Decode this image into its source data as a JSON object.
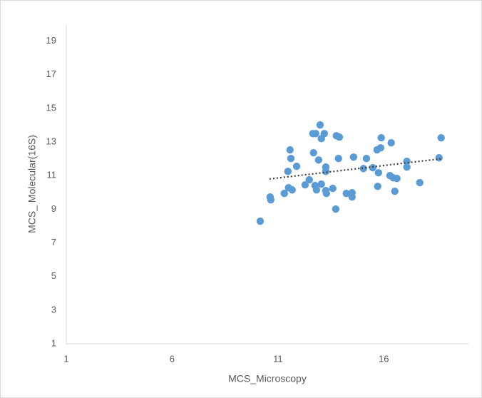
{
  "chart_data": {
    "type": "scatter",
    "x_label": "MCS_Microscopy",
    "y_label": "MCS_ Molecular(16S)",
    "color": "#5b9bd5",
    "grid": false,
    "xlim": [
      1,
      20
    ],
    "xticks": [
      1,
      6,
      11,
      16
    ],
    "ylim": [
      1,
      20
    ],
    "yticks": [
      1,
      3,
      5,
      7,
      9,
      11,
      13,
      15,
      17,
      19
    ],
    "x": [
      10.63,
      10.66,
      10.16,
      11.3,
      11.47,
      11.5,
      11.57,
      11.61,
      11.67,
      11.88,
      12.28,
      12.48,
      12.65,
      12.68,
      12.78,
      12.75,
      12.82,
      12.92,
      12.99,
      13.05,
      13.05,
      13.19,
      13.26,
      13.26,
      13.26,
      13.29,
      13.59,
      13.73,
      13.76,
      13.9,
      13.86,
      14.23,
      14.5,
      14.5,
      14.57,
      15.04,
      15.18,
      15.48,
      15.68,
      15.75,
      15.71,
      15.85,
      15.88,
      16.29,
      16.35,
      16.45,
      16.52,
      16.62,
      17.09,
      17.09,
      17.7,
      18.61,
      18.71
    ],
    "values": [
      9.73,
      9.56,
      8.29,
      9.94,
      11.25,
      10.28,
      12.53,
      12.02,
      10.15,
      11.55,
      10.45,
      10.75,
      13.5,
      12.36,
      13.5,
      10.41,
      10.15,
      11.93,
      14.01,
      13.2,
      10.49,
      13.5,
      11.51,
      11.25,
      10.11,
      9.94,
      10.24,
      9.01,
      13.37,
      13.29,
      12.02,
      9.94,
      9.98,
      9.73,
      12.1,
      11.42,
      12.02,
      11.47,
      12.53,
      11.17,
      10.36,
      12.65,
      13.25,
      11.0,
      12.95,
      10.87,
      10.07,
      10.83,
      11.85,
      11.51,
      10.58,
      12.06,
      13.25
    ],
    "trendline": {
      "x": [
        10.6,
        18.7
      ],
      "values": [
        10.8,
        12.0
      ],
      "color": "#404040"
    }
  }
}
